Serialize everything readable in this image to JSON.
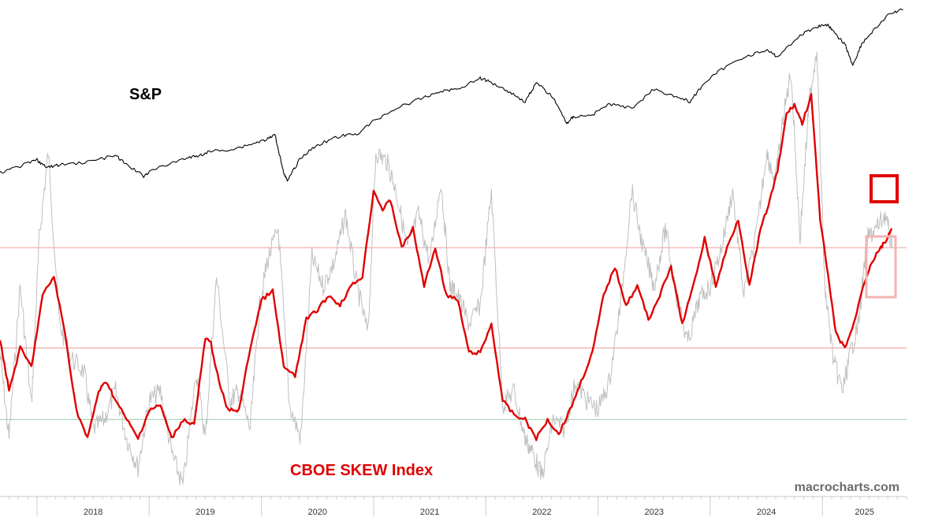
{
  "chart_data": {
    "type": "line",
    "x_range": [
      "2017-09",
      "2025-05"
    ],
    "x_tick_labels": [
      "2018",
      "2019",
      "2020",
      "2021",
      "2022",
      "2023",
      "2024",
      "2025"
    ],
    "grid": false,
    "annotations": {
      "sp_label": "S&P",
      "skew_label": "CBOE SKEW Index",
      "watermark": "macrocharts.com"
    },
    "reference_lines": [
      {
        "level": "upper",
        "color": "#f3a8a8"
      },
      {
        "level": "middle",
        "color": "#f3a8a8"
      },
      {
        "level": "lower",
        "color": "#9fd3b3"
      }
    ],
    "highlight_boxes": [
      {
        "target": "raw SKEW recent peak",
        "color": "#e00000"
      },
      {
        "target": "smoothed SKEW recent rise",
        "color": "#f4b3b3"
      }
    ],
    "series": [
      {
        "name": "S&P",
        "color": "#000000",
        "x": [
          2017.67,
          2017.85,
          2018.0,
          2018.08,
          2018.2,
          2018.45,
          2018.7,
          2018.78,
          2018.95,
          2019.0,
          2019.3,
          2019.42,
          2019.55,
          2019.75,
          2019.95,
          2020.05,
          2020.12,
          2020.2,
          2020.23,
          2020.35,
          2020.5,
          2020.7,
          2020.85,
          2021.0,
          2021.2,
          2021.4,
          2021.6,
          2021.75,
          2021.95,
          2022.05,
          2022.2,
          2022.35,
          2022.45,
          2022.6,
          2022.72,
          2022.78,
          2022.95,
          2023.1,
          2023.3,
          2023.5,
          2023.72,
          2023.82,
          2023.95,
          2024.1,
          2024.3,
          2024.5,
          2024.6,
          2024.8,
          2024.95,
          2025.05,
          2025.12,
          2025.2,
          2025.27,
          2025.35,
          2025.45,
          2025.6,
          2025.72
        ],
        "y": [
          2500,
          2650,
          2800,
          2620,
          2680,
          2750,
          2900,
          2720,
          2420,
          2520,
          2820,
          2880,
          3000,
          3050,
          3200,
          3280,
          3380,
          2500,
          2300,
          2850,
          3150,
          3350,
          3400,
          3700,
          4000,
          4200,
          4400,
          4450,
          4700,
          4600,
          4400,
          4150,
          4600,
          4250,
          3650,
          3800,
          3850,
          4100,
          4000,
          4450,
          4250,
          4150,
          4600,
          4900,
          5200,
          5350,
          5200,
          5700,
          5900,
          5950,
          5700,
          5500,
          5000,
          5500,
          5800,
          6200,
          6300
        ]
      },
      {
        "name": "SKEW",
        "color": "#bfbfbf",
        "x": [
          2017.67,
          2017.75,
          2017.85,
          2017.95,
          2018.02,
          2018.1,
          2018.2,
          2018.3,
          2018.42,
          2018.5,
          2018.6,
          2018.7,
          2018.8,
          2018.9,
          2019.0,
          2019.1,
          2019.2,
          2019.3,
          2019.42,
          2019.5,
          2019.6,
          2019.72,
          2019.8,
          2019.9,
          2019.98,
          2020.05,
          2020.15,
          2020.25,
          2020.35,
          2020.45,
          2020.55,
          2020.65,
          2020.75,
          2020.85,
          2020.95,
          2021.02,
          2021.12,
          2021.2,
          2021.3,
          2021.4,
          2021.5,
          2021.6,
          2021.68,
          2021.75,
          2021.85,
          2021.95,
          2022.05,
          2022.15,
          2022.25,
          2022.35,
          2022.42,
          2022.5,
          2022.6,
          2022.7,
          2022.8,
          2022.9,
          2023.0,
          2023.1,
          2023.2,
          2023.3,
          2023.4,
          2023.5,
          2023.6,
          2023.7,
          2023.8,
          2023.9,
          2024.0,
          2024.1,
          2024.2,
          2024.3,
          2024.42,
          2024.5,
          2024.58,
          2024.65,
          2024.72,
          2024.8,
          2024.88,
          2024.95,
          2025.02,
          2025.1,
          2025.18,
          2025.25,
          2025.32,
          2025.4,
          2025.48,
          2025.56,
          2025.62
        ],
        "y": [
          136,
          118,
          150,
          125,
          160,
          178,
          142,
          135,
          132,
          120,
          122,
          128,
          118,
          112,
          126,
          128,
          115,
          108,
          132,
          118,
          152,
          126,
          128,
          120,
          145,
          155,
          162,
          125,
          118,
          156,
          150,
          155,
          165,
          150,
          140,
          178,
          176,
          170,
          158,
          165,
          155,
          172,
          150,
          148,
          142,
          146,
          170,
          125,
          128,
          118,
          115,
          110,
          122,
          120,
          130,
          126,
          124,
          130,
          146,
          170,
          158,
          150,
          162,
          148,
          138,
          147,
          150,
          158,
          170,
          148,
          162,
          178,
          172,
          185,
          195,
          160,
          188,
          200,
          150,
          134,
          128,
          136,
          142,
          160,
          162,
          165,
          158
        ]
      },
      {
        "name": "SKEW smoothed",
        "color": "#e00000",
        "x": [
          2017.67,
          2017.75,
          2017.85,
          2017.95,
          2018.05,
          2018.15,
          2018.25,
          2018.35,
          2018.45,
          2018.55,
          2018.62,
          2018.7,
          2018.8,
          2018.9,
          2019.0,
          2019.1,
          2019.2,
          2019.3,
          2019.4,
          2019.5,
          2019.55,
          2019.62,
          2019.7,
          2019.8,
          2019.9,
          2020.0,
          2020.1,
          2020.2,
          2020.3,
          2020.4,
          2020.5,
          2020.6,
          2020.7,
          2020.8,
          2020.9,
          2021.0,
          2021.08,
          2021.15,
          2021.25,
          2021.35,
          2021.45,
          2021.55,
          2021.65,
          2021.75,
          2021.85,
          2021.95,
          2022.05,
          2022.15,
          2022.25,
          2022.35,
          2022.45,
          2022.55,
          2022.65,
          2022.75,
          2022.85,
          2022.95,
          2023.05,
          2023.15,
          2023.25,
          2023.35,
          2023.45,
          2023.55,
          2023.65,
          2023.75,
          2023.85,
          2023.95,
          2024.05,
          2024.15,
          2024.25,
          2024.35,
          2024.45,
          2024.52,
          2024.6,
          2024.68,
          2024.75,
          2024.82,
          2024.9,
          2024.98,
          2025.05,
          2025.12,
          2025.2,
          2025.28,
          2025.36,
          2025.44,
          2025.52,
          2025.58,
          2025.62
        ],
        "y": [
          139,
          128,
          137,
          133,
          148,
          152,
          140,
          124,
          118,
          128,
          130,
          126,
          122,
          118,
          124,
          125,
          118,
          122,
          121,
          139,
          138,
          130,
          124,
          124,
          137,
          147,
          149,
          133,
          131,
          143,
          145,
          148,
          146,
          150,
          152,
          170,
          166,
          168,
          158,
          162,
          150,
          158,
          148,
          147,
          136,
          136,
          142,
          126,
          123,
          122,
          118,
          122,
          119,
          124,
          130,
          136,
          148,
          154,
          146,
          150,
          143,
          148,
          154,
          142,
          150,
          160,
          150,
          158,
          164,
          150,
          162,
          167,
          174,
          186,
          188,
          184,
          190,
          164,
          152,
          140,
          137,
          142,
          150,
          155,
          158,
          160,
          162
        ]
      }
    ]
  }
}
